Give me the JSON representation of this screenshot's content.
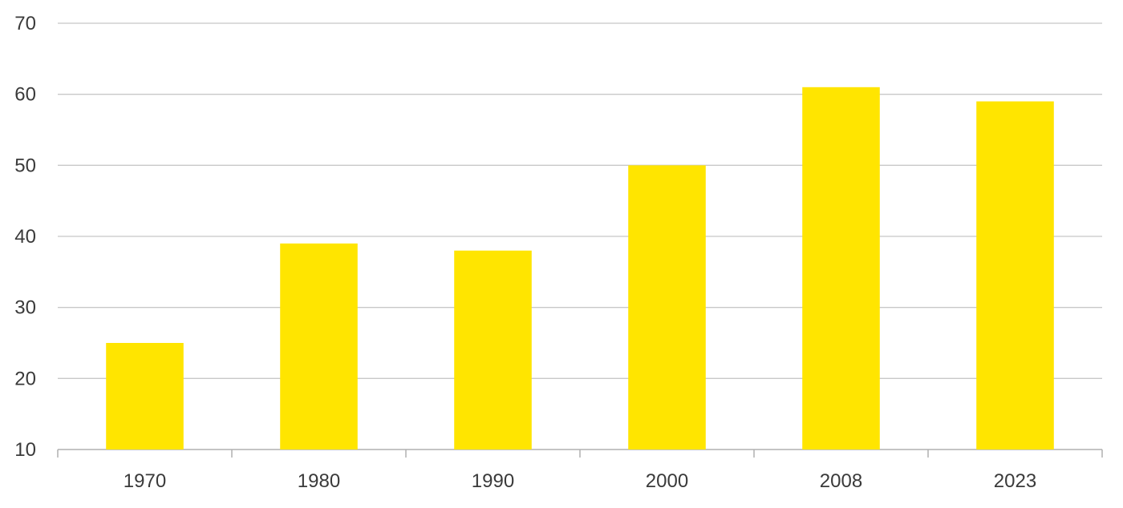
{
  "chart_data": {
    "type": "bar",
    "title": "",
    "xlabel": "",
    "ylabel": "",
    "categories": [
      "1970",
      "1980",
      "1990",
      "2000",
      "2008",
      "2023"
    ],
    "values": [
      25,
      39,
      38,
      50,
      61,
      59
    ],
    "ylim": [
      10,
      70
    ],
    "yticks": [
      10,
      20,
      30,
      40,
      50,
      60,
      70
    ],
    "grid": true,
    "legend": "none",
    "bar_color": "#FFE500",
    "grid_color": "#c8c8c8",
    "axis_color": "#b0b0b0",
    "text_color": "#3a3a3a"
  }
}
